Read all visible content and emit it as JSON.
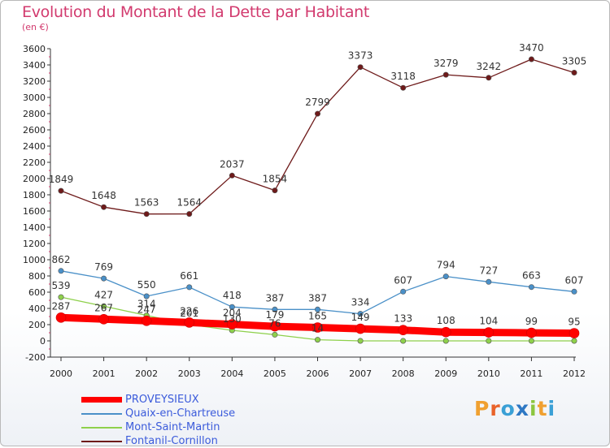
{
  "title": "Evolution du Montant de la Dette par Habitant",
  "subtitle": "(en €)",
  "brand": {
    "letters": [
      "P",
      "r",
      "o",
      "x",
      "i",
      "t",
      "i"
    ],
    "colors": [
      "#f0a030",
      "#e9632a",
      "#3aa0d6",
      "#2e78c4",
      "#8cc63f",
      "#f0a030",
      "#3aa0d6"
    ]
  },
  "chart_data": {
    "type": "line",
    "title": "Evolution du Montant de la Dette par Habitant",
    "ylabel": "(en €)",
    "xlabel": "",
    "categories": [
      "2000",
      "2001",
      "2002",
      "2003",
      "2004",
      "2005",
      "2006",
      "2007",
      "2008",
      "2009",
      "2010",
      "2011",
      "2012"
    ],
    "ylim": [
      -200,
      3600
    ],
    "yticks": [
      "-200",
      "0",
      "200",
      "400",
      "600",
      "800",
      "1000",
      "1200",
      "1400",
      "1600",
      "1800",
      "2000",
      "2200",
      "2400",
      "2600",
      "2800",
      "3000",
      "3200",
      "3400",
      "3600"
    ],
    "grid": false,
    "legend": "bottom-left",
    "series": [
      {
        "name": "PROVEYSIEUX",
        "color": "#ff0000",
        "thick": true,
        "values": [
          287,
          267,
          247,
          226,
          204,
          179,
          165,
          149,
          133,
          108,
          104,
          99,
          95
        ],
        "labels": [
          "287",
          "267",
          "247",
          "226",
          "204",
          "179",
          "165",
          "149",
          "133",
          "108",
          "104",
          "99",
          "95"
        ]
      },
      {
        "name": "Quaix-en-Chartreuse",
        "color": "#4a90c8",
        "thick": false,
        "values": [
          862,
          769,
          550,
          661,
          418,
          387,
          387,
          334,
          607,
          794,
          727,
          663,
          607
        ],
        "labels": [
          "862",
          "769",
          "550",
          "661",
          "418",
          "387",
          "387",
          "334",
          "607",
          "794",
          "727",
          "663",
          "607"
        ]
      },
      {
        "name": "Mont-Saint-Martin",
        "color": "#8ed04b",
        "thick": false,
        "values": [
          539,
          427,
          314,
          201,
          130,
          76,
          14,
          0,
          0,
          0,
          0,
          0,
          0
        ],
        "labels": [
          "539",
          "427",
          "314",
          "201",
          "130",
          "76",
          "14",
          "",
          "",
          "",
          "",
          "",
          ""
        ]
      },
      {
        "name": "Fontanil-Cornillon",
        "color": "#6e1a1a",
        "thick": false,
        "values": [
          1849,
          1648,
          1563,
          1564,
          2037,
          1854,
          2799,
          3373,
          3118,
          3279,
          3242,
          3470,
          3305
        ],
        "labels": [
          "1849",
          "1648",
          "1563",
          "1564",
          "2037",
          "1854",
          "2799",
          "3373",
          "3118",
          "3279",
          "3242",
          "3470",
          "3305"
        ]
      }
    ]
  }
}
